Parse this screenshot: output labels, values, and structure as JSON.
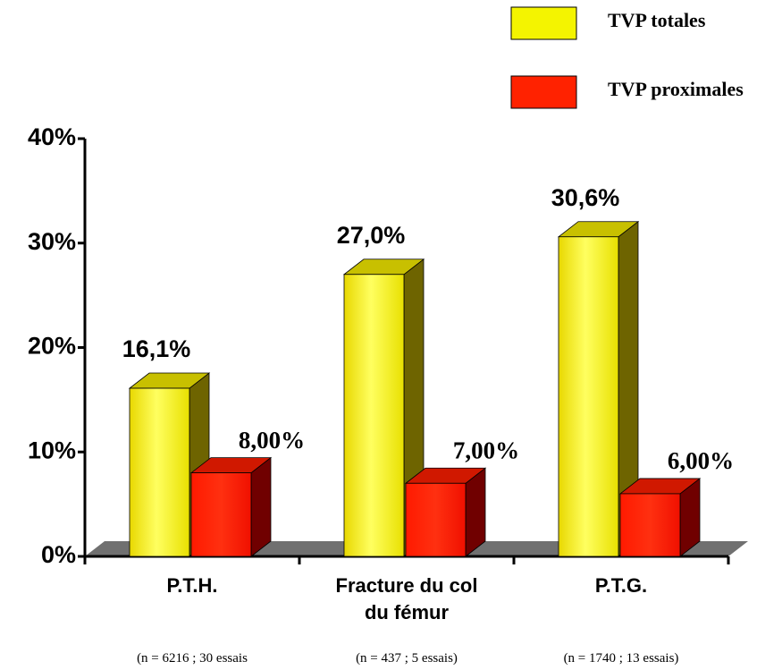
{
  "chart_data": {
    "type": "bar3d",
    "categories": [
      "P.T.H.",
      "Fracture du col du fémur",
      "P.T.G."
    ],
    "notes": [
      "(n = 6216 ; 30 essais",
      "(n = 437 ; 5 essais)",
      "(n = 1740 ; 13 essais)"
    ],
    "series": [
      {
        "name": "TVP totales",
        "color": "#f4f400",
        "values": [
          16.1,
          27.0,
          30.6
        ],
        "value_labels": [
          "16,1%",
          "27,0%",
          "30,6%"
        ]
      },
      {
        "name": "TVP proximales",
        "color": "#ff2200",
        "values": [
          8,
          7,
          6
        ],
        "value_labels": [
          "8,00%",
          "7,00%",
          "6,00%"
        ]
      }
    ],
    "ylim": [
      0,
      40
    ],
    "yticks": [
      {
        "value": 0,
        "label": "0%"
      },
      {
        "value": 10,
        "label": "10%"
      },
      {
        "value": 20,
        "label": "20%"
      },
      {
        "value": 30,
        "label": "30%"
      },
      {
        "value": 40,
        "label": "40%"
      }
    ]
  }
}
